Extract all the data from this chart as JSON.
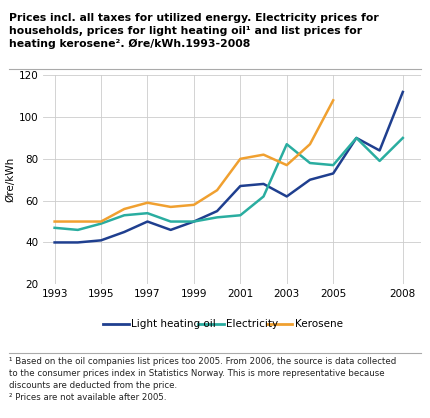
{
  "ylabel": "Øre/kWh",
  "ylim": [
    20,
    120
  ],
  "yticks": [
    20,
    40,
    60,
    80,
    100,
    120
  ],
  "xticks": [
    1993,
    1995,
    1997,
    1999,
    2001,
    2003,
    2005,
    2008
  ],
  "years_oil": [
    1993,
    1994,
    1995,
    1996,
    1997,
    1998,
    1999,
    2000,
    2001,
    2002,
    2003,
    2004,
    2005,
    2006,
    2007,
    2008
  ],
  "light_heating_oil": [
    40,
    40,
    41,
    45,
    50,
    46,
    50,
    55,
    67,
    68,
    62,
    70,
    73,
    90,
    84,
    112
  ],
  "years_elec": [
    1993,
    1994,
    1995,
    1996,
    1997,
    1998,
    1999,
    2000,
    2001,
    2002,
    2003,
    2004,
    2005,
    2006,
    2007,
    2008
  ],
  "electricity": [
    47,
    46,
    49,
    53,
    54,
    50,
    50,
    52,
    53,
    62,
    87,
    78,
    77,
    90,
    79,
    90
  ],
  "years_ker": [
    1993,
    1994,
    1995,
    1996,
    1997,
    1998,
    1999,
    2000,
    2001,
    2002,
    2003,
    2004,
    2005
  ],
  "kerosene": [
    50,
    50,
    50,
    56,
    59,
    57,
    58,
    65,
    80,
    82,
    77,
    87,
    108
  ],
  "oil_color": "#1f3f8f",
  "elec_color": "#2aada0",
  "ker_color": "#f0a030",
  "title_line1": "Prices incl. all taxes for utilized energy. Electricity prices for",
  "title_line2": "households, prices for light heating oil¹ and list prices for",
  "title_line3": "heating kerosene². Øre/kWh.1993-2008",
  "legend_labels": [
    "Light heating oil",
    "Electricity",
    "Kerosene"
  ],
  "footnote1": "¹ Based on the oil companies list prices too 2005. From 2006, the source is data collected",
  "footnote2": "to the consumer prices index in Statistics Norway. This is more representative because",
  "footnote3": "discounts are deducted from the price.",
  "footnote4": "² Prices are not available after 2005.",
  "background_color": "#ffffff",
  "grid_color": "#cccccc"
}
